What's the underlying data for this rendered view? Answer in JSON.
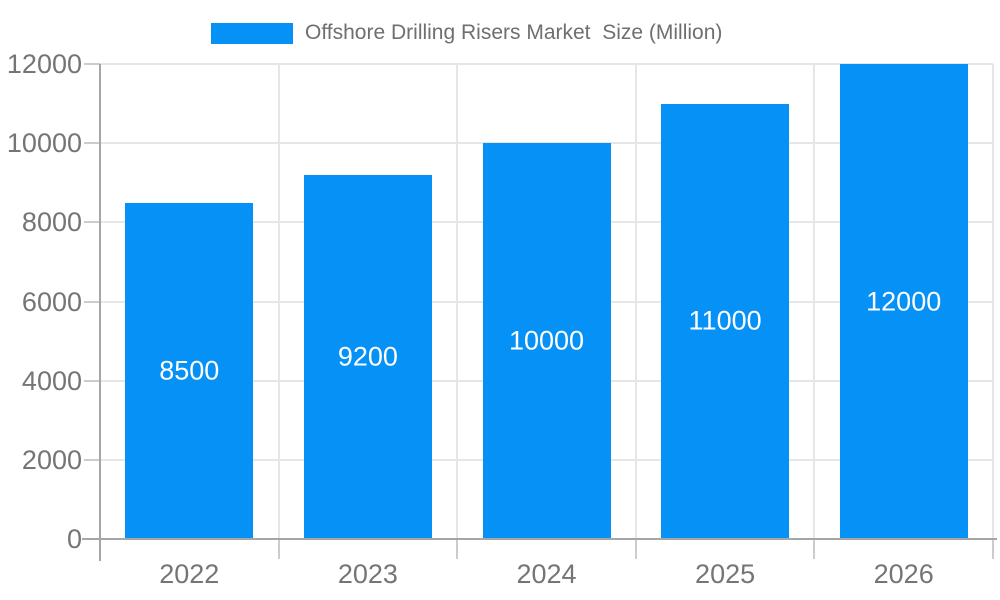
{
  "legend": {
    "label": "Offshore Drilling Risers Market  Size (Million)"
  },
  "chart_data": {
    "type": "bar",
    "title": "Offshore Drilling Risers Market  Size (Million)",
    "categories": [
      "2022",
      "2023",
      "2024",
      "2025",
      "2026"
    ],
    "series": [
      {
        "name": "Offshore Drilling Risers Market Size (Million)",
        "values": [
          8500,
          9200,
          10000,
          11000,
          12000
        ]
      }
    ],
    "bar_labels": [
      "8500",
      "9200",
      "10000",
      "11000",
      "12000"
    ],
    "xlabel": "",
    "ylabel": "",
    "ylim": [
      0,
      12000
    ],
    "yticks": [
      0,
      2000,
      4000,
      6000,
      8000,
      10000,
      12000
    ],
    "grid": true,
    "legend_position": "top",
    "colors": {
      "bar": "#0591f5",
      "bar_label": "#ffffff",
      "axis_text": "#757575",
      "legend_text": "#6f6f6f",
      "gridline": "#e6e6e6",
      "axis_line": "#a6a6a6",
      "tick": "#cccccc",
      "background": "#ffffff"
    }
  }
}
